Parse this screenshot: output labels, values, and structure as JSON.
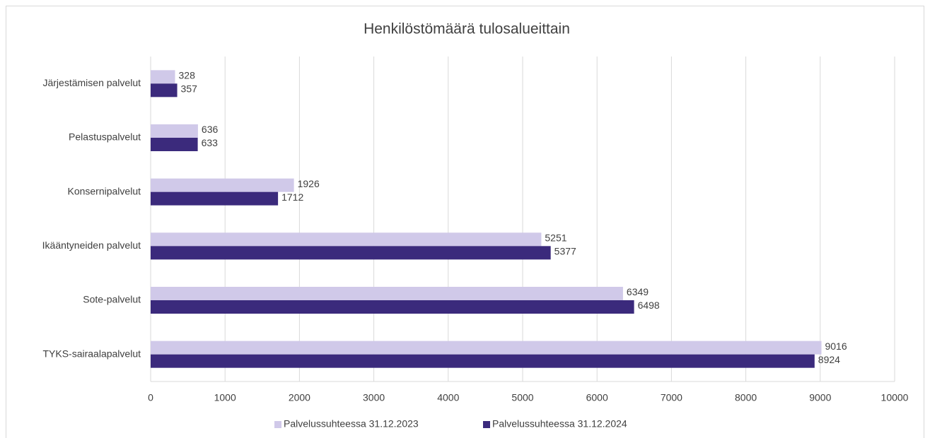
{
  "chart_data": {
    "type": "bar",
    "orientation": "horizontal",
    "title": "Henkilöstömäärä tulosalueittain",
    "categories": [
      "Järjestämisen palvelut",
      "Pelastuspalvelut",
      "Konsernipalvelut",
      "Ikääntyneiden palvelut",
      "Sote-palvelut",
      "TYKS-sairaalapalvelut"
    ],
    "series": [
      {
        "name": "Palvelussuhteessa 31.12.2023",
        "color": "#d0c9e9",
        "values": [
          328,
          636,
          1926,
          5251,
          6349,
          9016
        ]
      },
      {
        "name": "Palvelussuhteessa 31.12.2024",
        "color": "#3b2a7c",
        "values": [
          357,
          633,
          1712,
          5377,
          6498,
          8924
        ]
      }
    ],
    "xlim": [
      0,
      10000
    ],
    "xticks": [
      0,
      1000,
      2000,
      3000,
      4000,
      5000,
      6000,
      7000,
      8000,
      9000,
      10000
    ],
    "grid": true,
    "legend": "bottom"
  }
}
